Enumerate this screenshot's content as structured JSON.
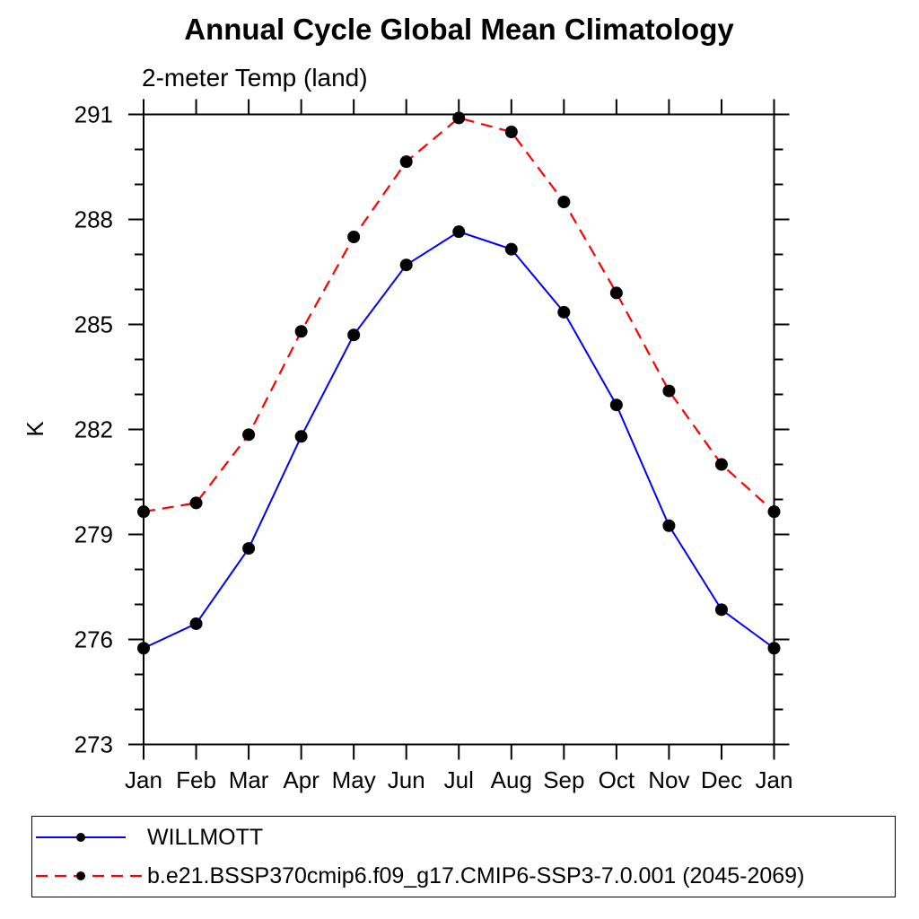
{
  "chart_data": {
    "type": "line",
    "title": "Annual Cycle Global Mean Climatology",
    "subtitle": "2-meter Temp (land)",
    "ylabel": "K",
    "xlabel": "",
    "x_categories": [
      "Jan",
      "Feb",
      "Mar",
      "Apr",
      "May",
      "Jun",
      "Jul",
      "Aug",
      "Sep",
      "Oct",
      "Nov",
      "Dec",
      "Jan"
    ],
    "ylim": [
      273,
      291
    ],
    "ytick_major_interval": 3,
    "ytick_minor_interval": 1,
    "ytick_major_labels": [
      "273",
      "276",
      "279",
      "282",
      "285",
      "288",
      "291"
    ],
    "grid": false,
    "legend_position": "bottom",
    "axis_color": "#000000",
    "series": [
      {
        "name": "WILLMOTT",
        "color": "#0000ff",
        "line_style": "solid",
        "marker": "filled-circle",
        "marker_color": "#000000",
        "values": [
          275.75,
          276.45,
          278.6,
          281.8,
          284.7,
          286.7,
          287.65,
          287.15,
          285.35,
          282.7,
          279.25,
          276.85,
          275.75
        ]
      },
      {
        "name": "b.e21.BSSP370cmip6.f09_g17.CMIP6-SSP3-7.0.001 (2045-2069)",
        "color": "#ff0000",
        "line_style": "dashed",
        "marker": "filled-circle",
        "marker_color": "#000000",
        "values": [
          279.65,
          279.9,
          281.85,
          284.8,
          287.5,
          289.65,
          290.9,
          290.5,
          288.5,
          285.9,
          283.1,
          281.0,
          279.65
        ]
      }
    ]
  }
}
